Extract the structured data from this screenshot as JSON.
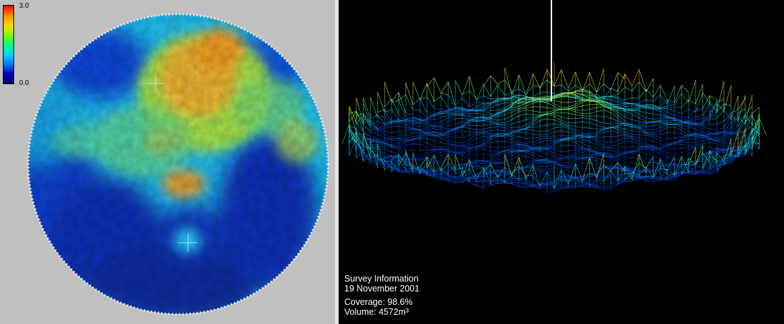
{
  "colorbar": {
    "max_label": "3.0",
    "min_label": "0.0",
    "colors": [
      "#ff0000",
      "#ff8c00",
      "#ffd200",
      "#7fff00",
      "#00ff80",
      "#00d8ff",
      "#0080ff",
      "#0000c0",
      "#000060"
    ]
  },
  "survey": {
    "title": "Survey Information",
    "date": "19 November 2001",
    "coverage": "Coverage: 98.6%",
    "volume": "Volume: 4572m³"
  }
}
